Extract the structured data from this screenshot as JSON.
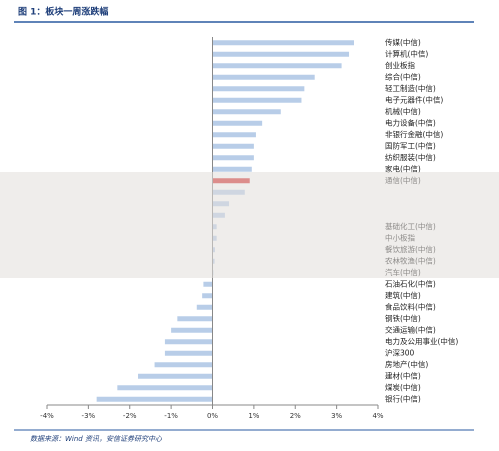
{
  "chart_data": {
    "type": "hbar",
    "title": "图 1：板块一周涨跌幅",
    "source": "数据来源：Wind 资讯，安信证券研究中心",
    "categories": [
      "传媒(中信)",
      "计算机(中信)",
      "创业板指",
      "综合(中信)",
      "轻工制造(中信)",
      "电子元器件(中信)",
      "机械(中信)",
      "电力设备(中信)",
      "非银行金融(中信)",
      "国防军工(中信)",
      "纺织服装(中信)",
      "家电(中信)",
      "通信(中信)",
      null,
      null,
      null,
      "基础化工(中信)",
      "中小板指",
      "餐饮旅游(中信)",
      "农林牧渔(中信)",
      "汽车(中信)",
      "石油石化(中信)",
      "建筑(中信)",
      "食品饮料(中信)",
      "钢铁(中信)",
      "交通运输(中信)",
      "电力及公用事业(中信)",
      "沪深300",
      "房地产(中信)",
      "建材(中信)",
      "煤炭(中信)",
      "银行(中信)"
    ],
    "values": [
      3.42,
      3.3,
      3.12,
      2.47,
      2.22,
      2.15,
      1.65,
      1.2,
      1.05,
      1.0,
      1.0,
      0.95,
      0.9,
      0.78,
      0.4,
      0.3,
      0.1,
      0.1,
      0.06,
      0.05,
      0.02,
      -0.22,
      -0.25,
      -0.38,
      -0.85,
      -1.0,
      -1.15,
      -1.15,
      -1.4,
      -1.8,
      -2.3,
      -2.8
    ],
    "color": "#b8cde8",
    "highlight_color": "#d42a2a",
    "highlight_index": 12,
    "xlim": [
      -4,
      4
    ],
    "xticks": [
      {
        "value": -4,
        "label": "-4%"
      },
      {
        "value": -3,
        "label": "-3%"
      },
      {
        "value": -2,
        "label": "-2%"
      },
      {
        "value": -1,
        "label": "-1%"
      },
      {
        "value": 0,
        "label": "0%"
      },
      {
        "value": 1,
        "label": "1%"
      },
      {
        "value": 2,
        "label": "2%"
      },
      {
        "value": 3,
        "label": "3%"
      },
      {
        "value": 4,
        "label": "4%"
      }
    ]
  }
}
